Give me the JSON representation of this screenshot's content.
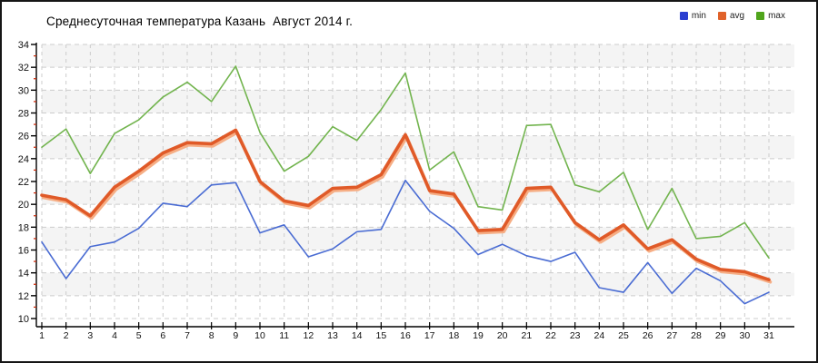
{
  "title": "Среднесуточная температура Казань  Август 2014 г.",
  "legend": {
    "items": [
      {
        "label": "min",
        "color": "#2b3fd0"
      },
      {
        "label": "avg",
        "color": "#e0622a"
      },
      {
        "label": "max",
        "color": "#50a51c"
      }
    ]
  },
  "chart_data": {
    "type": "line",
    "title": "Среднесуточная температура Казань  Август 2014 г.",
    "x": [
      1,
      2,
      3,
      4,
      5,
      6,
      7,
      8,
      9,
      10,
      11,
      12,
      13,
      14,
      15,
      16,
      17,
      18,
      19,
      20,
      21,
      22,
      23,
      24,
      25,
      26,
      27,
      28,
      29,
      30,
      31
    ],
    "series": [
      {
        "name": "min",
        "color": "#4a6cd3",
        "line_width": 1.6,
        "values": [
          16.7,
          13.5,
          16.3,
          16.7,
          17.9,
          20.1,
          19.8,
          21.7,
          21.9,
          17.5,
          18.2,
          15.4,
          16.1,
          17.6,
          17.8,
          22.1,
          19.4,
          17.9,
          15.6,
          16.5,
          15.5,
          15.0,
          15.8,
          12.7,
          12.3,
          14.9,
          12.2,
          14.4,
          13.3,
          11.3,
          12.3
        ]
      },
      {
        "name": "avg",
        "color": "#e05a28",
        "line_width": 3.6,
        "shadow_color": "#f6ae85",
        "values": [
          20.8,
          20.4,
          19.0,
          21.5,
          22.9,
          24.5,
          25.4,
          25.3,
          26.5,
          22.0,
          20.3,
          19.9,
          21.4,
          21.5,
          22.6,
          26.1,
          21.2,
          20.9,
          17.7,
          17.8,
          21.4,
          21.5,
          18.4,
          16.9,
          18.2,
          16.1,
          16.9,
          15.2,
          14.3,
          14.1,
          13.4
        ]
      },
      {
        "name": "max",
        "color": "#72b44e",
        "line_width": 1.6,
        "values": [
          25.0,
          26.6,
          22.7,
          26.2,
          27.4,
          29.4,
          30.7,
          29.0,
          32.1,
          26.3,
          22.9,
          24.2,
          26.8,
          25.6,
          28.3,
          31.5,
          23.0,
          24.6,
          19.8,
          19.5,
          26.9,
          27.0,
          21.7,
          21.1,
          22.8,
          17.8,
          21.4,
          17.0,
          17.2,
          18.4,
          15.3
        ]
      }
    ],
    "ylim": [
      10,
      34
    ],
    "ytick_step": 2,
    "yticks": [
      34,
      32,
      30,
      28,
      26,
      24,
      22,
      20,
      18,
      16,
      14,
      12,
      10
    ],
    "xticks": [
      1,
      2,
      3,
      4,
      5,
      6,
      7,
      8,
      9,
      10,
      11,
      12,
      13,
      14,
      15,
      16,
      17,
      18,
      19,
      20,
      21,
      22,
      23,
      24,
      25,
      26,
      27,
      28,
      29,
      30,
      31
    ],
    "grid": true,
    "legend_position": "top-right",
    "background_bands": [
      "#f4f4f4",
      "#ffffff"
    ],
    "grid_color": "#cccccc",
    "axis_color": "#000000",
    "minor_tick_color": "#cc2200",
    "tick_label_color": "#111111",
    "xlabel": "",
    "ylabel": ""
  }
}
